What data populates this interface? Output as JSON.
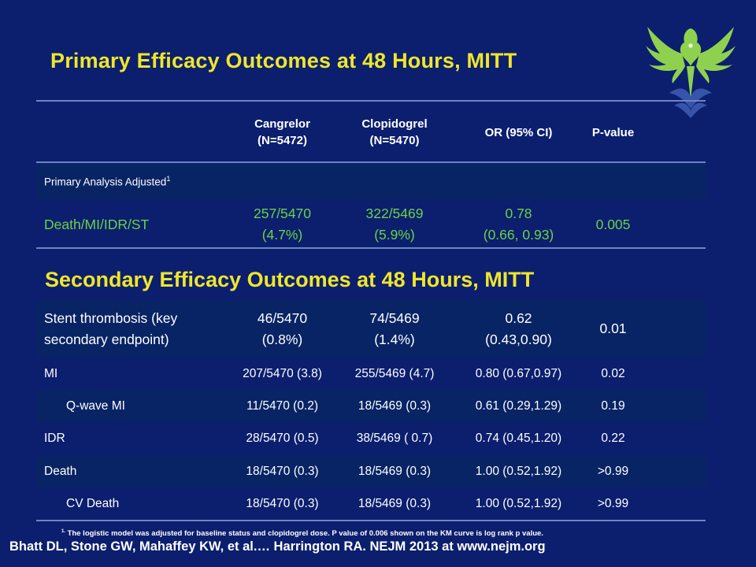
{
  "title": "Primary Efficacy Outcomes at 48 Hours, MITT",
  "secondary_title": "Secondary Efficacy Outcomes at 48 Hours, MITT",
  "header": {
    "col2_line1": "Cangrelor",
    "col2_line2": "(N=5472)",
    "col3_line1": "Clopidogrel",
    "col3_line2": "(N=5470)",
    "col4": "OR (95% CI)",
    "col5": "P-value"
  },
  "primary": {
    "analysis_label": "Primary Analysis Adjusted",
    "analysis_sup": "1",
    "endpoint": "Death/MI/IDR/ST",
    "cangrelor_line1": "257/5470",
    "cangrelor_line2": "(4.7%)",
    "clopidogrel_line1": "322/5469",
    "clopidogrel_line2": "(5.9%)",
    "or_line1": "0.78",
    "or_line2": "(0.66, 0.93)",
    "p": "0.005"
  },
  "secondary": {
    "stent": {
      "label_line1": "Stent thrombosis (key",
      "label_line2": "secondary endpoint)",
      "cangrelor_line1": "46/5470",
      "cangrelor_line2": "(0.8%)",
      "clopidogrel_line1": "74/5469",
      "clopidogrel_line2": "(1.4%)",
      "or_line1": "0.62",
      "or_line2": "(0.43,0.90)",
      "p": "0.01"
    },
    "rows": [
      {
        "label": "MI",
        "cangrelor": "207/5470 (3.8)",
        "clopidogrel": "255/5469 (4.7)",
        "or": "0.80 (0.67,0.97)",
        "p": "0.02"
      },
      {
        "label": "Q-wave MI",
        "cangrelor": "11/5470 (0.2)",
        "clopidogrel": "18/5469 (0.3)",
        "or": "0.61 (0.29,1.29)",
        "p": "0.19"
      },
      {
        "label": "IDR",
        "cangrelor": "28/5470 (0.5)",
        "clopidogrel": "38/5469 ( 0.7)",
        "or": "0.74 (0.45,1.20)",
        "p": "0.22"
      },
      {
        "label": "Death",
        "cangrelor": "18/5470 (0.3)",
        "clopidogrel": "18/5469 (0.3)",
        "or": "1.00 (0.52,1.92)",
        "p": ">0.99"
      },
      {
        "label": "CV Death",
        "cangrelor": "18/5470 (0.3)",
        "clopidogrel": "18/5469 (0.3)",
        "or": "1.00 (0.52,1.92)",
        "p": ">0.99"
      }
    ]
  },
  "footnote_marker": "1.",
  "footnote": "The logistic model was adjusted for baseline status and clopidogrel dose. P value of 0.006  shown on the KM curve is log rank p value.",
  "citation": "Bhatt DL, Stone GW, Mahaffey KW, et al.… Harrington RA. NEJM 2013 at www.nejm.org",
  "colors": {
    "background": "#0b1f6e",
    "title": "#f0e62a",
    "highlight": "#6cd148",
    "row_shade": "#082464"
  },
  "icons": {
    "logo": "phoenix-bird-logo"
  }
}
